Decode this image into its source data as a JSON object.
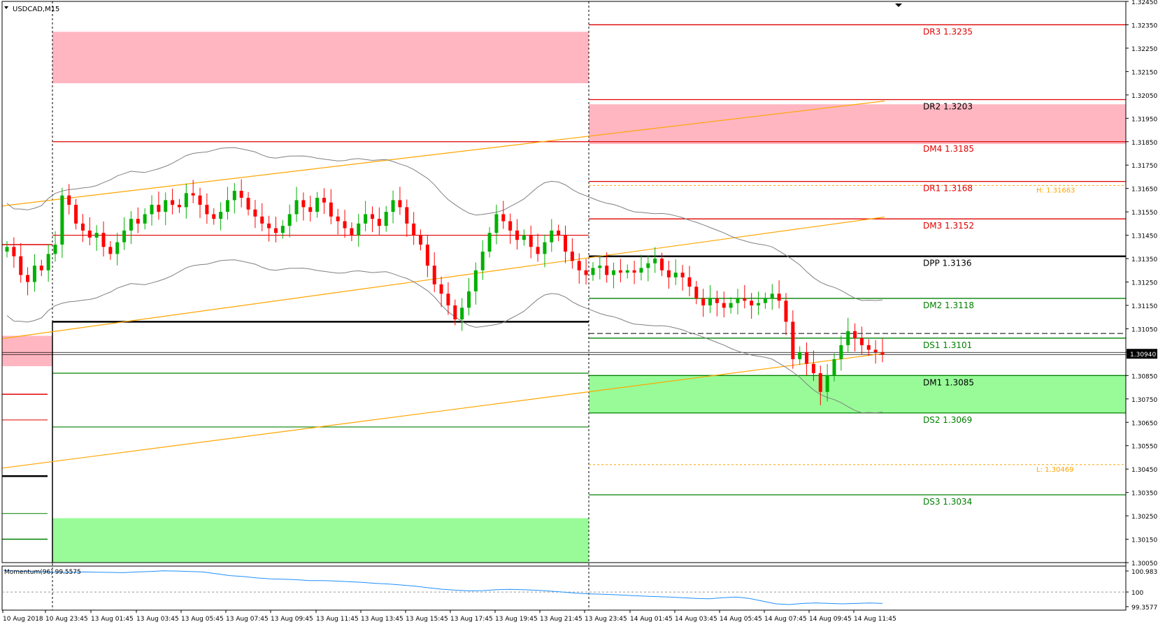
{
  "chart_data": {
    "type": "candlestick",
    "symbol_label": "USDCAD,M15",
    "timeframe": "M15",
    "price_axis": {
      "min": 1.3005,
      "max": 1.3245,
      "ticks": [
        "1.32450",
        "1.32350",
        "1.32250",
        "1.32150",
        "1.32050",
        "1.31950",
        "1.31850",
        "1.31750",
        "1.31650",
        "1.31550",
        "1.31450",
        "1.31350",
        "1.31250",
        "1.31150",
        "1.31050",
        "1.30950",
        "1.30850",
        "1.30750",
        "1.30650",
        "1.30550",
        "1.30450",
        "1.30350",
        "1.30250",
        "1.30150",
        "1.30050"
      ],
      "current_price_label": "1.30940",
      "current_price": 1.3094
    },
    "time_axis_labels": [
      "10 Aug 2018",
      "10 Aug 23:45",
      "13 Aug 01:45",
      "13 Aug 03:45",
      "13 Aug 05:45",
      "13 Aug 07:45",
      "13 Aug 09:45",
      "13 Aug 11:45",
      "13 Aug 13:45",
      "13 Aug 15:45",
      "13 Aug 17:45",
      "13 Aug 19:45",
      "13 Aug 21:45",
      "13 Aug 23:45",
      "14 Aug 01:45",
      "14 Aug 03:45",
      "14 Aug 05:45",
      "14 Aug 07:45",
      "14 Aug 09:45",
      "14 Aug 11:45"
    ],
    "pivot_levels": [
      {
        "label": "DR3 1.3235",
        "value": 1.3235,
        "color": "#e00000",
        "kind": "resistance"
      },
      {
        "label": "DR2 1.3203",
        "value": 1.3203,
        "color": "#000000",
        "kind": "resistance"
      },
      {
        "label": "DM4 1.3185",
        "value": 1.3185,
        "color": "#e00000",
        "kind": "resistance"
      },
      {
        "label": "DR1 1.3168",
        "value": 1.3168,
        "color": "#e00000",
        "kind": "resistance"
      },
      {
        "label": "DM3 1.3152",
        "value": 1.3152,
        "color": "#e00000",
        "kind": "resistance"
      },
      {
        "label": "DPP 1.3136",
        "value": 1.3136,
        "color": "#000000",
        "kind": "pivot"
      },
      {
        "label": "DM2 1.3118",
        "value": 1.3118,
        "color": "#008000",
        "kind": "support"
      },
      {
        "label": "DS1 1.3101",
        "value": 1.3101,
        "color": "#008000",
        "kind": "support"
      },
      {
        "label": "DM1 1.3085",
        "value": 1.3085,
        "color": "#000000",
        "kind": "support"
      },
      {
        "label": "DS2 1.3069",
        "value": 1.3069,
        "color": "#008000",
        "kind": "support"
      },
      {
        "label": "DS3 1.3034",
        "value": 1.3034,
        "color": "#008000",
        "kind": "support"
      }
    ],
    "session_high": {
      "label": "H: 1.31663",
      "value": 1.31663
    },
    "session_low": {
      "label": "L: 1.30469",
      "value": 1.30469
    },
    "zones": [
      {
        "kind": "supply",
        "top": 1.3232,
        "bottom": 1.321,
        "day": "13 Aug"
      },
      {
        "kind": "supply",
        "top": 1.3201,
        "bottom": 1.3184,
        "day": "14 Aug"
      },
      {
        "kind": "demand",
        "top": 1.3085,
        "bottom": 1.3069,
        "day": "14 Aug"
      },
      {
        "kind": "demand",
        "top": 1.3024,
        "bottom": 1.3005,
        "day": "13 Aug"
      },
      {
        "kind": "supply",
        "top": 1.3102,
        "bottom": 1.3089,
        "day": "10 Aug"
      }
    ],
    "prev_day_levels": [
      {
        "value": 1.3185,
        "color": "#e00000"
      },
      {
        "value": 1.3145,
        "color": "#e00000"
      },
      {
        "value": 1.3108,
        "color": "#000000"
      },
      {
        "value": 1.3086,
        "color": "#008000"
      },
      {
        "value": 1.3063,
        "color": "#008000"
      }
    ],
    "momentum": {
      "label": "Momentum(96) 99.5575",
      "ticks": [
        "100.9837",
        "100",
        "99.3577"
      ],
      "min": 99.3577,
      "max": 100.9837,
      "reference": 100,
      "values": [
        100.95,
        100.92,
        100.9,
        100.88,
        100.87,
        100.86,
        100.88,
        100.87,
        100.86,
        100.85,
        100.88,
        100.9,
        100.93,
        100.92,
        100.9,
        100.88,
        100.8,
        100.72,
        100.68,
        100.62,
        100.58,
        100.56,
        100.54,
        100.5,
        100.5,
        100.48,
        100.45,
        100.42,
        100.38,
        100.35,
        100.3,
        100.25,
        100.18,
        100.12,
        100.08,
        100.05,
        100.06,
        100.1,
        100.12,
        100.1,
        100.08,
        100.04,
        100.0,
        99.95,
        99.92,
        99.9,
        99.88,
        99.85,
        99.82,
        99.8,
        99.78,
        99.75,
        99.72,
        99.7,
        99.75,
        99.78,
        99.72,
        99.6,
        99.48,
        99.45,
        99.5,
        99.52,
        99.5,
        99.48,
        99.5,
        99.52,
        99.5
      ]
    },
    "colors": {
      "bull": "#00b000",
      "bear": "#ff0000",
      "supply_zone": "#ffb6c1",
      "demand_zone": "#98fb98",
      "trendline": "#ffa500",
      "bands": "#808080",
      "momentum_line": "#1e90ff",
      "high_low": "#ffa500"
    }
  }
}
